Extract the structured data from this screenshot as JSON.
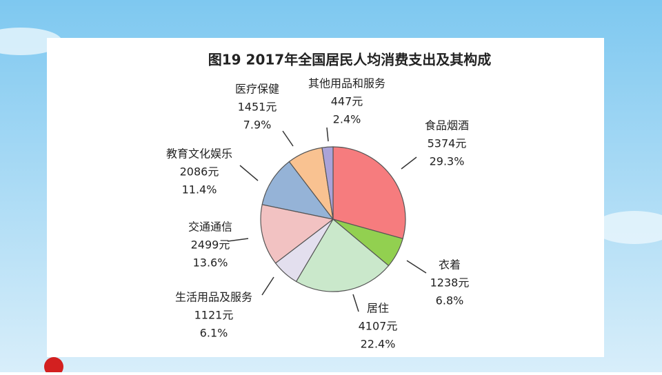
{
  "chart_data": {
    "type": "pie",
    "title": "图19    2017年全国居民人均消费支出及其构成",
    "categories": [
      "食品烟酒",
      "衣着",
      "居住",
      "生活用品及服务",
      "交通通信",
      "教育文化娱乐",
      "医疗保健",
      "其他用品和服务"
    ],
    "values": [
      5374,
      1238,
      4107,
      1121,
      2499,
      2086,
      1451,
      447
    ],
    "value_labels": [
      "5374元",
      "1238元",
      "4107元",
      "1121元",
      "2499元",
      "2086元",
      "1451元",
      "447元"
    ],
    "percents": [
      29.3,
      6.8,
      22.4,
      6.1,
      13.6,
      11.4,
      7.9,
      2.4
    ],
    "percent_labels": [
      "29.3%",
      "6.8%",
      "22.4%",
      "6.1%",
      "13.6%",
      "11.4%",
      "7.9%",
      "2.4%"
    ],
    "colors": [
      "#f67c7e",
      "#92d050",
      "#cae8cb",
      "#e3dfee",
      "#f2c2c2",
      "#95b3d7",
      "#f9c291",
      "#aaa3d8"
    ]
  }
}
